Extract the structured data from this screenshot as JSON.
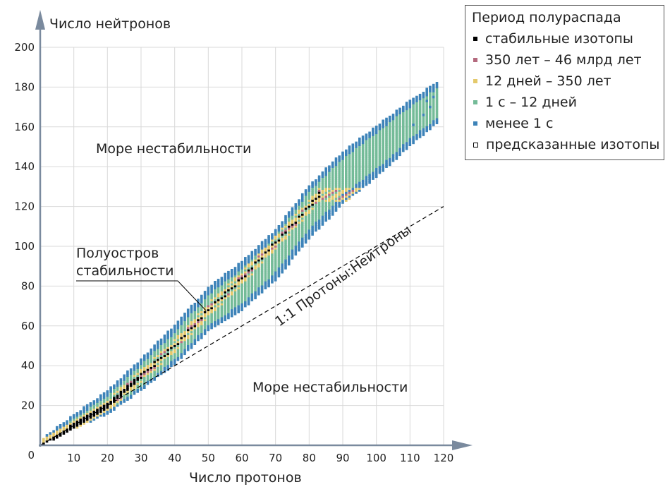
{
  "chart_data": {
    "type": "scatter",
    "x_label": "Число протонов",
    "y_label": "Число нейтронов",
    "xlim": [
      0,
      120
    ],
    "ylim": [
      0,
      200
    ],
    "x_ticks": [
      10,
      20,
      30,
      40,
      50,
      60,
      70,
      80,
      90,
      100,
      110,
      120
    ],
    "y_ticks": [
      20,
      40,
      60,
      80,
      100,
      120,
      140,
      160,
      180,
      200
    ],
    "origin_label": "0",
    "grid": true,
    "legend": {
      "title": "Период полураспада",
      "position": "top-right",
      "items": [
        {
          "label": "стабильные изотопы",
          "color": "#000000",
          "marker": "filled"
        },
        {
          "label": "350 лет – 46 млрд лет",
          "color": "#b4697e",
          "marker": "filled"
        },
        {
          "label": "12 дней – 350 лет",
          "color": "#e4c96b",
          "marker": "filled"
        },
        {
          "label": "1 с – 12 дней",
          "color": "#74bb98",
          "marker": "filled"
        },
        {
          "label": "менее 1 с",
          "color": "#3d83b8",
          "marker": "filled"
        },
        {
          "label": "предсказанные изотопы",
          "color": "#000000",
          "marker": "hollow"
        }
      ]
    },
    "annotations": {
      "sea_top": "Море нестабильности",
      "sea_bottom": "Море нестабильности",
      "peninsula_line1": "Полуостров",
      "peninsula_line2": "стабильности",
      "ratio_line": "1:1 Протоны:Нейтроны"
    },
    "reference_line": {
      "x": [
        0,
        120
      ],
      "y": [
        0,
        120
      ],
      "style": "dashed"
    },
    "band": {
      "description_values": "lower/upper neutron limits of known isotopes per proton number",
      "centre": [
        [
          0,
          0
        ],
        [
          10,
          11
        ],
        [
          20,
          21
        ],
        [
          30,
          35
        ],
        [
          40,
          50
        ],
        [
          50,
          68
        ],
        [
          60,
          80
        ],
        [
          70,
          96
        ],
        [
          80,
          118
        ],
        [
          90,
          135
        ],
        [
          100,
          148
        ],
        [
          110,
          162
        ],
        [
          118,
          172
        ]
      ],
      "half_width_low": [
        [
          0,
          0
        ],
        [
          20,
          5
        ],
        [
          40,
          9
        ],
        [
          60,
          12
        ],
        [
          80,
          14
        ],
        [
          100,
          13
        ],
        [
          118,
          10
        ]
      ],
      "half_width_high": [
        [
          0,
          2
        ],
        [
          20,
          6
        ],
        [
          40,
          10
        ],
        [
          60,
          12
        ],
        [
          80,
          12
        ],
        [
          100,
          12
        ],
        [
          118,
          10
        ]
      ]
    },
    "stable_centre": [
      [
        1,
        0
      ],
      [
        10,
        10
      ],
      [
        20,
        20
      ],
      [
        30,
        35
      ],
      [
        40,
        50
      ],
      [
        50,
        68
      ],
      [
        60,
        84
      ],
      [
        70,
        102
      ],
      [
        80,
        120
      ],
      [
        83,
        126
      ]
    ],
    "predicted_points": [
      [
        111,
        161
      ],
      [
        114,
        166
      ],
      [
        116,
        170
      ],
      [
        117,
        175
      ],
      [
        115,
        173
      ]
    ]
  }
}
